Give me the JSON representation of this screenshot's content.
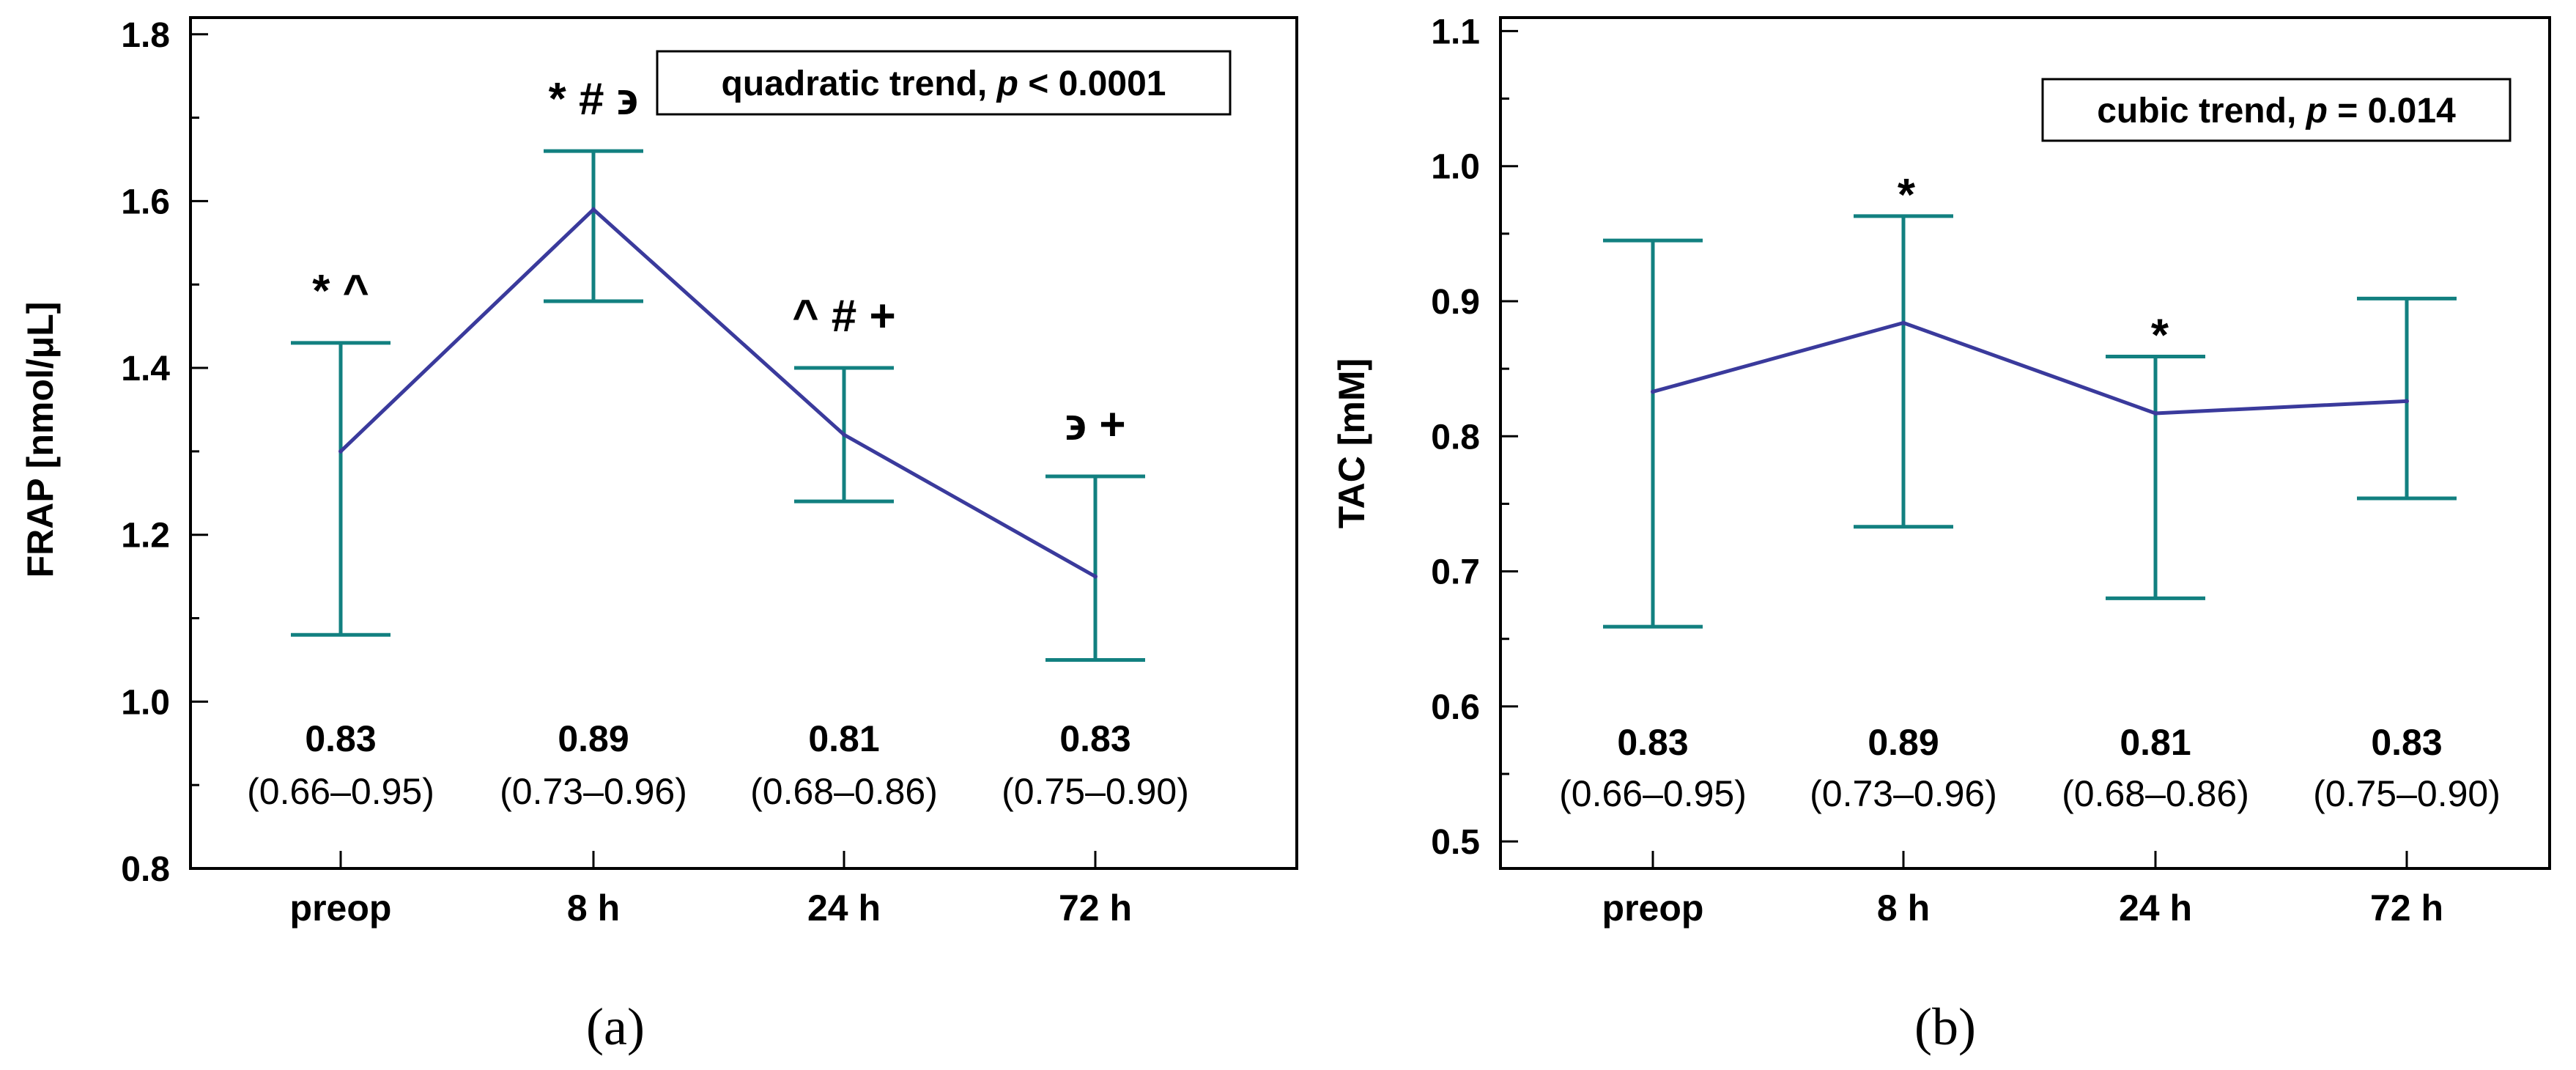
{
  "colors": {
    "line": "#3a3a9c",
    "errorbar": "#128080",
    "axis": "#000000",
    "background": "#ffffff"
  },
  "chart_data": [
    {
      "type": "line",
      "panel_label": "(a)",
      "ylabel": "FRAP  [nmol/μL]",
      "xlabel": "",
      "ylim": [
        0.8,
        1.82
      ],
      "yticks": [
        "0.8",
        "1.0",
        "1.2",
        "1.4",
        "1.6",
        "1.8"
      ],
      "categories": [
        "preop",
        "8 h",
        "24 h",
        "72 h"
      ],
      "series": [
        {
          "name": "FRAP",
          "values": [
            1.3,
            1.59,
            1.32,
            1.15
          ],
          "lower": [
            1.08,
            1.48,
            1.24,
            1.05
          ],
          "upper": [
            1.43,
            1.66,
            1.4,
            1.27
          ]
        }
      ],
      "markers": [
        "* ^",
        "* # ϶",
        "^ # +",
        "϶ +"
      ],
      "medians": [
        "0.83",
        "0.89",
        "0.81",
        "0.83"
      ],
      "ranges": [
        "(0.66–0.95)",
        "(0.73–0.96)",
        "(0.68–0.86)",
        "(0.75–0.90)"
      ],
      "annotation": {
        "prefix": "quadratic trend, ",
        "p": "p",
        "suffix": " < 0.0001"
      },
      "grid": false
    },
    {
      "type": "line",
      "panel_label": "(b)",
      "ylabel": "TAC [mM]",
      "xlabel": "",
      "ylim": [
        0.48,
        1.11
      ],
      "yticks": [
        "0.5",
        "0.6",
        "0.7",
        "0.8",
        "0.9",
        "1.0",
        "1.1"
      ],
      "categories": [
        "preop",
        "8 h",
        "24 h",
        "72 h"
      ],
      "series": [
        {
          "name": "TAC",
          "values": [
            0.833,
            0.884,
            0.817,
            0.826
          ],
          "lower": [
            0.659,
            0.733,
            0.68,
            0.754
          ],
          "upper": [
            0.945,
            0.963,
            0.859,
            0.902
          ]
        }
      ],
      "markers": [
        "",
        "*",
        "*",
        ""
      ],
      "medians": [
        "0.83",
        "0.89",
        "0.81",
        "0.83"
      ],
      "ranges": [
        "(0.66–0.95)",
        "(0.73–0.96)",
        "(0.68–0.86)",
        "(0.75–0.90)"
      ],
      "annotation": {
        "prefix": "cubic trend, ",
        "p": "p",
        "suffix": " = 0.014"
      },
      "grid": false
    }
  ]
}
